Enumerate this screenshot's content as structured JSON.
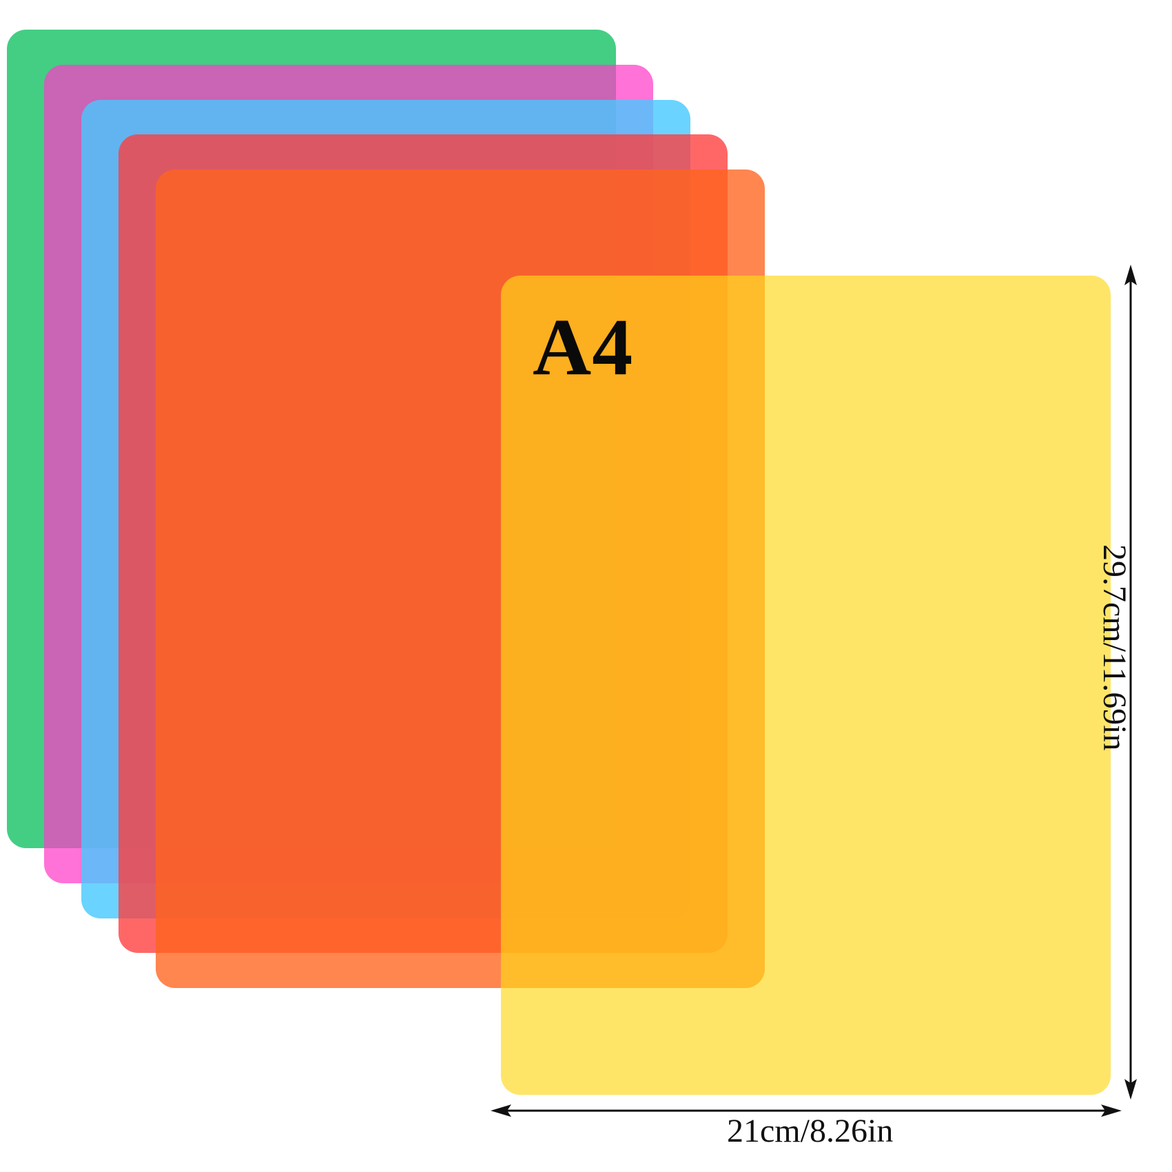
{
  "sheets": [
    {
      "name": "green",
      "color": "#22C56E"
    },
    {
      "name": "pink",
      "color": "#FF3CC8"
    },
    {
      "name": "blue",
      "color": "#46C8FF"
    },
    {
      "name": "red",
      "color": "#FF3C3C"
    },
    {
      "name": "orange",
      "color": "#FF641E"
    },
    {
      "name": "yellow",
      "color": "#FFD719"
    }
  ],
  "size_label": "A4",
  "width_label": "21cm/8.26in",
  "height_label": "29.7cm/11.69in"
}
